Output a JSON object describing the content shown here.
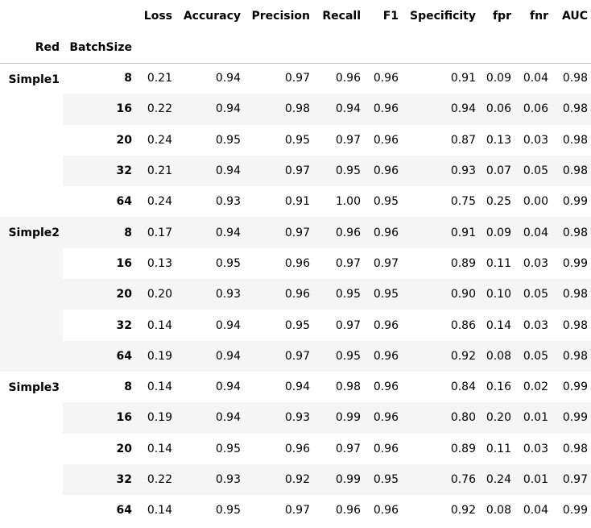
{
  "columns": [
    "Loss",
    "Accuracy",
    "Precision",
    "Recall",
    "F1",
    "Specificity",
    "fpr",
    "fnr",
    "AUC"
  ],
  "index_names": [
    "Red",
    "BatchSize"
  ],
  "groups": [
    {
      "name": "Simple1",
      "rows": [
        {
          "batch": "8",
          "values": [
            "0.21",
            "0.94",
            "0.97",
            "0.96",
            "0.96",
            "0.91",
            "0.09",
            "0.04",
            "0.98"
          ]
        },
        {
          "batch": "16",
          "values": [
            "0.22",
            "0.94",
            "0.98",
            "0.94",
            "0.96",
            "0.94",
            "0.06",
            "0.06",
            "0.98"
          ]
        },
        {
          "batch": "20",
          "values": [
            "0.24",
            "0.95",
            "0.95",
            "0.97",
            "0.96",
            "0.87",
            "0.13",
            "0.03",
            "0.98"
          ]
        },
        {
          "batch": "32",
          "values": [
            "0.21",
            "0.94",
            "0.97",
            "0.95",
            "0.96",
            "0.93",
            "0.07",
            "0.05",
            "0.98"
          ]
        },
        {
          "batch": "64",
          "values": [
            "0.24",
            "0.93",
            "0.91",
            "1.00",
            "0.95",
            "0.75",
            "0.25",
            "0.00",
            "0.99"
          ]
        }
      ]
    },
    {
      "name": "Simple2",
      "rows": [
        {
          "batch": "8",
          "values": [
            "0.17",
            "0.94",
            "0.97",
            "0.96",
            "0.96",
            "0.91",
            "0.09",
            "0.04",
            "0.98"
          ]
        },
        {
          "batch": "16",
          "values": [
            "0.13",
            "0.95",
            "0.96",
            "0.97",
            "0.97",
            "0.89",
            "0.11",
            "0.03",
            "0.99"
          ]
        },
        {
          "batch": "20",
          "values": [
            "0.20",
            "0.93",
            "0.96",
            "0.95",
            "0.95",
            "0.90",
            "0.10",
            "0.05",
            "0.98"
          ]
        },
        {
          "batch": "32",
          "values": [
            "0.14",
            "0.94",
            "0.95",
            "0.97",
            "0.96",
            "0.86",
            "0.14",
            "0.03",
            "0.98"
          ]
        },
        {
          "batch": "64",
          "values": [
            "0.19",
            "0.94",
            "0.97",
            "0.95",
            "0.96",
            "0.92",
            "0.08",
            "0.05",
            "0.98"
          ]
        }
      ]
    },
    {
      "name": "Simple3",
      "rows": [
        {
          "batch": "8",
          "values": [
            "0.14",
            "0.94",
            "0.94",
            "0.98",
            "0.96",
            "0.84",
            "0.16",
            "0.02",
            "0.99"
          ]
        },
        {
          "batch": "16",
          "values": [
            "0.19",
            "0.94",
            "0.93",
            "0.99",
            "0.96",
            "0.80",
            "0.20",
            "0.01",
            "0.99"
          ]
        },
        {
          "batch": "20",
          "values": [
            "0.14",
            "0.95",
            "0.96",
            "0.97",
            "0.96",
            "0.89",
            "0.11",
            "0.03",
            "0.98"
          ]
        },
        {
          "batch": "32",
          "values": [
            "0.22",
            "0.93",
            "0.92",
            "0.99",
            "0.95",
            "0.76",
            "0.24",
            "0.01",
            "0.97"
          ]
        },
        {
          "batch": "64",
          "values": [
            "0.14",
            "0.95",
            "0.97",
            "0.96",
            "0.96",
            "0.92",
            "0.08",
            "0.04",
            "0.99"
          ]
        }
      ]
    }
  ]
}
